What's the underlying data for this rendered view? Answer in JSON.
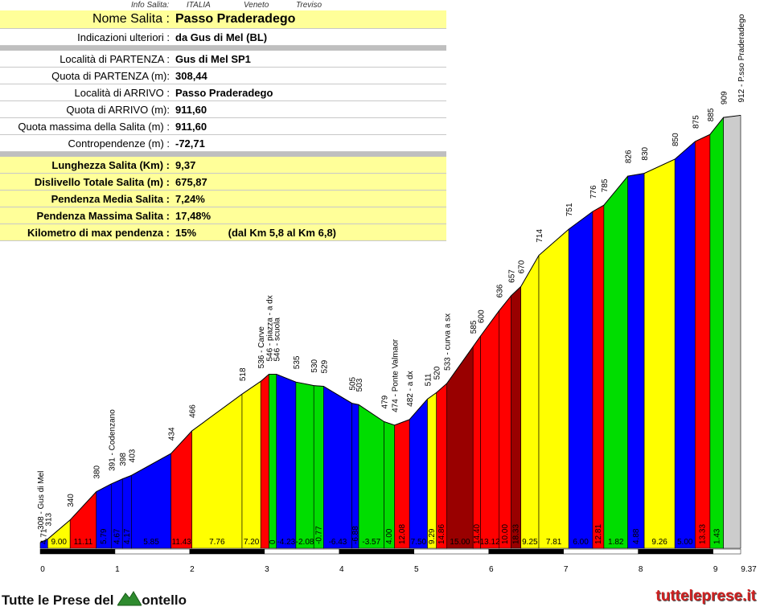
{
  "header": {
    "info_label": "Info Salita:",
    "country": "ITALIA",
    "region": "Veneto",
    "province": "Treviso"
  },
  "info": {
    "name_label": "Nome Salita :",
    "name": "Passo Praderadego",
    "extra_label": "Indicazioni ulteriori :",
    "extra": "da Gus di Mel (BL)",
    "rows": [
      {
        "label": "Località di PARTENZA :",
        "value": "Gus di Mel SP1"
      },
      {
        "label": "Quota di PARTENZA (m):",
        "value": "308,44"
      },
      {
        "label": "Località di ARRIVO :",
        "value": "Passo Praderadego"
      },
      {
        "label": "Quota di ARRIVO (m):",
        "value": "911,60"
      },
      {
        "label": "Quota massima della Salita (m) :",
        "value": "911,60"
      },
      {
        "label": "Contropendenze (m) :",
        "value": "-72,71"
      }
    ],
    "summary": [
      {
        "label": "Lunghezza Salita (Km) :",
        "value": "9,37"
      },
      {
        "label": "Dislivello Totale Salita (m) :",
        "value": "675,87"
      },
      {
        "label": "Pendenza Media Salita :",
        "value": "7,24%"
      },
      {
        "label": "Pendenza Massima Salita :",
        "value": "17,48%"
      },
      {
        "label": "Kilometro di max pendenza :",
        "value": "15%",
        "note": "(dal Km 5,8 al Km 6,8)"
      }
    ]
  },
  "chart_data": {
    "type": "area",
    "xlabel": "",
    "ylabel": "",
    "xlim": [
      0,
      9.37
    ],
    "x_ticks": [
      "0",
      "1",
      "2",
      "3",
      "4",
      "5",
      "6",
      "7",
      "8",
      "9",
      "9.37"
    ],
    "elevation_labels": [
      "308 - Gus di Mel",
      "313",
      "340",
      "380",
      "391 - Codenzano",
      "398",
      "403",
      "434",
      "466",
      "518",
      "536 - Carve",
      "546 - piazza - a dx",
      "546 - scuola",
      "535",
      "530",
      "529",
      "505",
      "503",
      "479",
      "474 - Ponte Valmaor",
      "482 - a dx",
      "511",
      "520",
      "533 - curva a sx",
      "585",
      "600",
      "636",
      "657",
      "670",
      "714",
      "751",
      "776",
      "785",
      "826",
      "830",
      "850",
      "875",
      "885",
      "909",
      "912 - P.sso Praderadego"
    ],
    "points": [
      {
        "km": 0.0,
        "elev": 308
      },
      {
        "km": 0.1,
        "elev": 313
      },
      {
        "km": 0.4,
        "elev": 340
      },
      {
        "km": 0.75,
        "elev": 380
      },
      {
        "km": 0.95,
        "elev": 391
      },
      {
        "km": 1.1,
        "elev": 398
      },
      {
        "km": 1.22,
        "elev": 403
      },
      {
        "km": 1.75,
        "elev": 434
      },
      {
        "km": 2.03,
        "elev": 466
      },
      {
        "km": 2.7,
        "elev": 518
      },
      {
        "km": 2.95,
        "elev": 536
      },
      {
        "km": 3.06,
        "elev": 546
      },
      {
        "km": 3.16,
        "elev": 546
      },
      {
        "km": 3.42,
        "elev": 535
      },
      {
        "km": 3.66,
        "elev": 530
      },
      {
        "km": 3.79,
        "elev": 529
      },
      {
        "km": 4.17,
        "elev": 505
      },
      {
        "km": 4.26,
        "elev": 503
      },
      {
        "km": 4.6,
        "elev": 479
      },
      {
        "km": 4.74,
        "elev": 474
      },
      {
        "km": 4.94,
        "elev": 482
      },
      {
        "km": 5.18,
        "elev": 511
      },
      {
        "km": 5.3,
        "elev": 520
      },
      {
        "km": 5.44,
        "elev": 533
      },
      {
        "km": 5.79,
        "elev": 585
      },
      {
        "km": 5.89,
        "elev": 600
      },
      {
        "km": 6.14,
        "elev": 636
      },
      {
        "km": 6.3,
        "elev": 657
      },
      {
        "km": 6.43,
        "elev": 670
      },
      {
        "km": 6.67,
        "elev": 714
      },
      {
        "km": 7.07,
        "elev": 751
      },
      {
        "km": 7.39,
        "elev": 776
      },
      {
        "km": 7.54,
        "elev": 785
      },
      {
        "km": 7.86,
        "elev": 826
      },
      {
        "km": 8.08,
        "elev": 830
      },
      {
        "km": 8.49,
        "elev": 850
      },
      {
        "km": 8.76,
        "elev": 875
      },
      {
        "km": 8.96,
        "elev": 885
      },
      {
        "km": 9.14,
        "elev": 909
      },
      {
        "km": 9.37,
        "elev": 912
      }
    ],
    "segments": [
      {
        "label": "4.71",
        "color": "#0000ff"
      },
      {
        "label": "9.00",
        "color": "#ffff00"
      },
      {
        "label": "11.11",
        "color": "#ff0000"
      },
      {
        "label": "5.79",
        "color": "#0000ff"
      },
      {
        "label": "4.67",
        "color": "#0000ff"
      },
      {
        "label": "4.17",
        "color": "#0000ff"
      },
      {
        "label": "5.85",
        "color": "#0000ff"
      },
      {
        "label": "11.43",
        "color": "#ff0000"
      },
      {
        "label": "7.76",
        "color": "#ffff00"
      },
      {
        "label": "7.20",
        "color": "#ffff00"
      },
      {
        "label": "",
        "color": "#ff0000"
      },
      {
        "label": "0",
        "color": "#00dd00"
      },
      {
        "label": "-4.23",
        "color": "#0000ff"
      },
      {
        "label": "-2.08",
        "color": "#00dd00"
      },
      {
        "label": "-0.77",
        "color": "#00dd00"
      },
      {
        "label": "-6.43",
        "color": "#0000ff"
      },
      {
        "label": "-6.88",
        "color": "#0000ff"
      },
      {
        "label": "-3.57",
        "color": "#00dd00"
      },
      {
        "label": "4.00",
        "color": "#00dd00"
      },
      {
        "label": "12.08",
        "color": "#ff0000"
      },
      {
        "label": "7.50",
        "color": "#0000ff"
      },
      {
        "label": "9.29",
        "color": "#ffff00"
      },
      {
        "label": "14.86",
        "color": "#ff0000"
      },
      {
        "label": "15.00",
        "color": "#990000"
      },
      {
        "label": "14.40",
        "color": "#ff0000"
      },
      {
        "label": "13.12",
        "color": "#ff0000"
      },
      {
        "label": "10.00",
        "color": "#ff0000"
      },
      {
        "label": "18.33",
        "color": "#990000"
      },
      {
        "label": "9.25",
        "color": "#ffff00"
      },
      {
        "label": "7.81",
        "color": "#ffff00"
      },
      {
        "label": "6.00",
        "color": "#0000ff"
      },
      {
        "label": "12.81",
        "color": "#ff0000"
      },
      {
        "label": "1.82",
        "color": "#00dd00"
      },
      {
        "label": "4.88",
        "color": "#0000ff"
      },
      {
        "label": "9.26",
        "color": "#ffff00"
      },
      {
        "label": "5.00",
        "color": "#0000ff"
      },
      {
        "label": "13.33",
        "color": "#ff0000"
      },
      {
        "label": "1.43",
        "color": "#00dd00"
      }
    ]
  },
  "footer": {
    "brand_left_a": "Tutte le Prese del ",
    "brand_left_b": "ontello",
    "brand_right": "tutteleprese.it"
  }
}
